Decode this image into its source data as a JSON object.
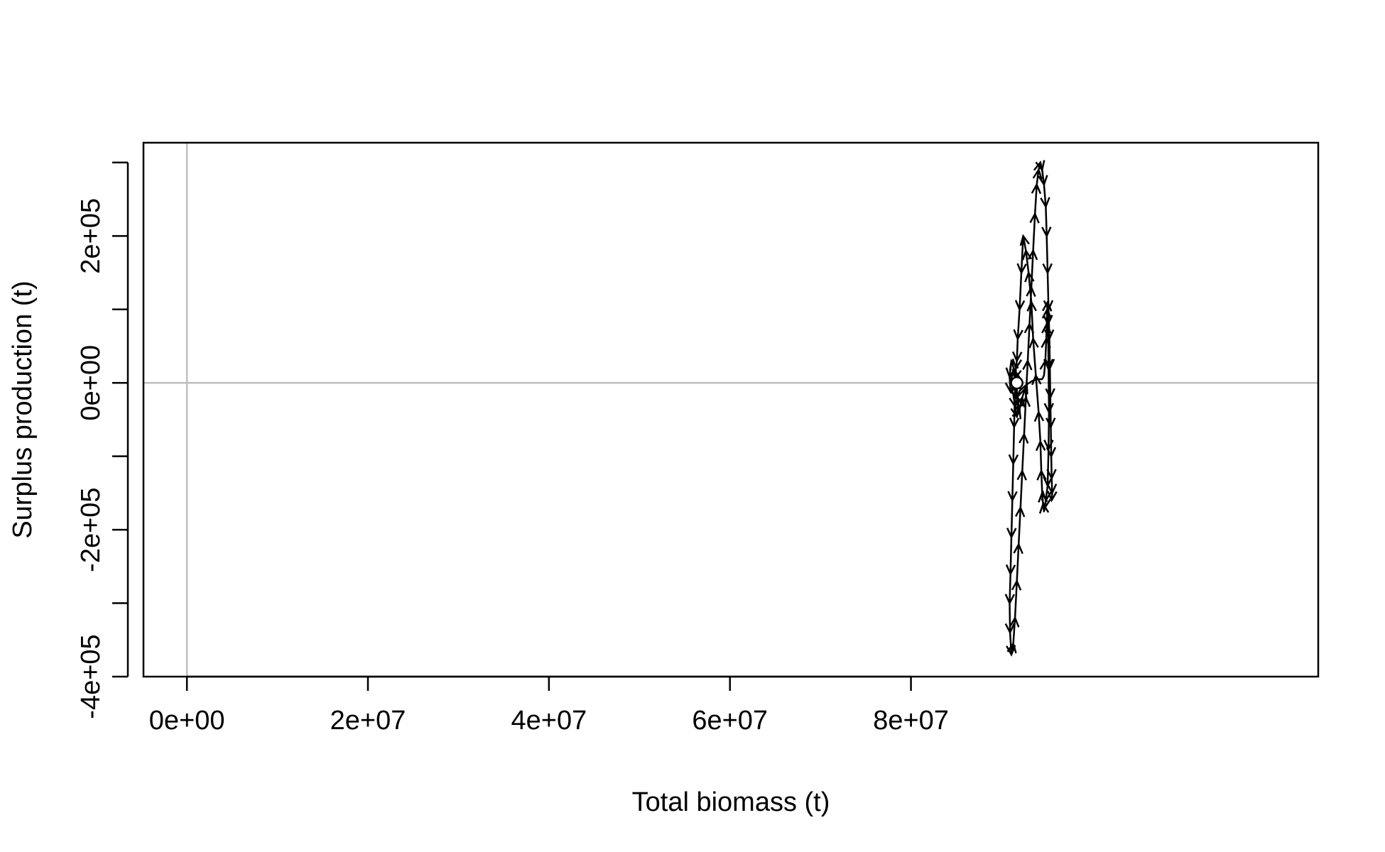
{
  "chart_data": {
    "type": "line",
    "title": "",
    "xlabel": "Total biomass (t)",
    "ylabel": "Surplus production (t)",
    "xlim": [
      -4800000,
      125000000
    ],
    "ylim": [
      -400000,
      327000
    ],
    "x_ticks": [
      {
        "value": 0,
        "label": "0e+00"
      },
      {
        "value": 20000000,
        "label": "2e+07"
      },
      {
        "value": 40000000,
        "label": "4e+07"
      },
      {
        "value": 60000000,
        "label": "6e+07"
      },
      {
        "value": 80000000,
        "label": "8e+07"
      }
    ],
    "y_ticks": [
      {
        "value": -400000,
        "label": "-4e+05"
      },
      {
        "value": -300000,
        "label": ""
      },
      {
        "value": -200000,
        "label": "-2e+05"
      },
      {
        "value": -100000,
        "label": ""
      },
      {
        "value": 0,
        "label": "0e+00"
      },
      {
        "value": 100000,
        "label": ""
      },
      {
        "value": 200000,
        "label": "2e+05"
      },
      {
        "value": 300000,
        "label": ""
      }
    ],
    "reference_lines": {
      "x": 0,
      "y": 0,
      "color": "#bebebe"
    },
    "grid": false,
    "legend": "none",
    "series": [
      {
        "color": "#000000",
        "x": [
          91900000,
          91700000,
          91600000,
          91500000,
          91550000,
          91700000,
          91900000,
          92000000,
          91800000,
          91600000,
          91400000,
          91100000,
          90900000,
          91000000,
          91300000,
          91500000,
          91700000,
          92000000,
          92300000,
          92600000,
          92800000,
          93100000,
          93300000,
          93500000,
          93700000,
          93900000,
          94200000,
          94500000,
          94700000,
          94850000,
          94950000,
          95000000,
          95050000,
          95100000,
          95150000,
          95200000,
          95250000,
          95200000,
          95100000,
          94900000,
          94800000,
          94700000,
          94600000,
          94500000,
          94400000,
          94300000,
          94100000,
          93800000,
          93500000,
          93300000,
          93000000,
          92700000,
          92400000,
          92200000,
          92000000,
          91800000,
          91700000,
          91600000,
          91500000,
          91400000,
          91300000,
          91200000,
          91100000,
          91000000,
          90900000,
          90950000,
          91100000,
          91300000,
          91500000,
          91700000,
          91900000,
          92100000,
          92300000,
          92500000,
          92700000,
          92900000,
          93100000,
          93300000,
          93500000,
          93700000,
          93900000,
          94100000,
          94300000,
          94500000,
          94700000,
          94900000,
          95000000,
          95100000,
          95200000,
          95300000,
          95350000,
          95400000,
          95450000,
          95500000,
          95550000,
          95600000,
          95550000
        ],
        "y": [
          0,
          4000,
          12000,
          6000,
          -6000,
          -22000,
          -38000,
          -42000,
          -20000,
          2000,
          18000,
          30000,
          8000,
          -12000,
          -15000,
          -32000,
          -46000,
          -36000,
          -20000,
          -8000,
          -2000,
          0,
          2000,
          3000,
          4000,
          5000,
          5000,
          5000,
          10000,
          30000,
          60000,
          80000,
          100000,
          110000,
          80000,
          20000,
          -40000,
          -90000,
          -140000,
          -160000,
          -170000,
          -175000,
          -165000,
          -150000,
          -120000,
          -80000,
          -40000,
          10000,
          60000,
          110000,
          150000,
          180000,
          200000,
          150000,
          100000,
          60000,
          30000,
          20000,
          -10000,
          -60000,
          -110000,
          -160000,
          -210000,
          -260000,
          -300000,
          -340000,
          -370000,
          -355000,
          -320000,
          -270000,
          -220000,
          -170000,
          -120000,
          -70000,
          -20000,
          30000,
          80000,
          130000,
          180000,
          230000,
          270000,
          290000,
          300000,
          290000,
          270000,
          240000,
          200000,
          150000,
          100000,
          60000,
          20000,
          -20000,
          -60000,
          -100000,
          -130000,
          -150000,
          -160000
        ]
      }
    ],
    "current_point": {
      "x": 91700000,
      "y": 0
    }
  }
}
